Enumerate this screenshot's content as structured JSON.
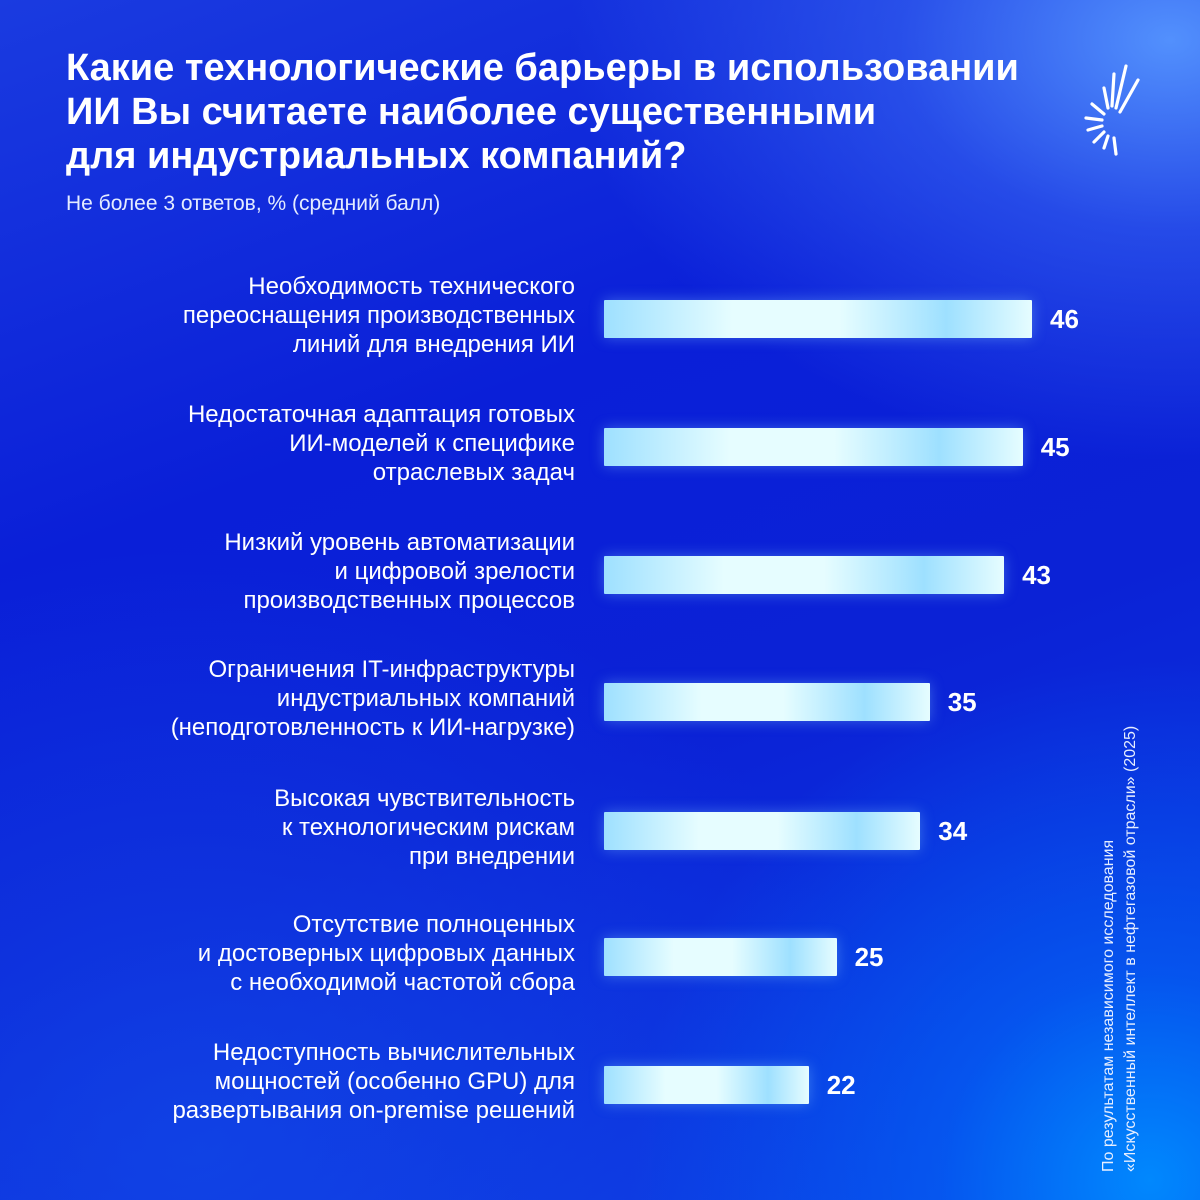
{
  "header": {
    "title_lines": [
      "Какие технологические барьеры в использовании",
      "ИИ Вы считаете наиболее существенными",
      "для индустриальных компаний?"
    ],
    "subtitle": "Не более 3 ответов, % (средний балл)"
  },
  "footnote": {
    "lines": [
      "По результатам независимого исследования",
      "«Искусственный интеллект в нефтегазовой отрасли» (2025)"
    ]
  },
  "colors": {
    "background_top": "#1a3be0",
    "background_bottom": "#0c3ee4",
    "bar_light": "#e6fdff",
    "bar_mid": "#9ee0ff",
    "text": "#ffffff"
  },
  "chart_data": {
    "type": "bar",
    "orientation": "horizontal",
    "title": "Какие технологические барьеры в использовании ИИ Вы считаете наиболее существенными для индустриальных компаний?",
    "subtitle": "Не более 3 ответов, % (средний балл)",
    "xlabel": "",
    "ylabel": "",
    "xlim": [
      0,
      50
    ],
    "grid": false,
    "legend": "none",
    "categories": [
      [
        "Необходимость технического",
        "переоснащения производственных",
        "линий для внедрения ИИ"
      ],
      [
        "Недостаточная адаптация готовых",
        "ИИ-моделей к специфике",
        "отраслевых задач"
      ],
      [
        "Низкий уровень автоматизации",
        "и цифровой зрелости",
        "производственных процессов"
      ],
      [
        "Ограничения IT-инфраструктуры",
        "индустриальных компаний",
        "(неподготовленность к ИИ-нагрузке)"
      ],
      [
        "Высокая чувствительность",
        "к технологическим рискам",
        "при внедрении"
      ],
      [
        "Отсутствие полноценных",
        "и достоверных цифровых данных",
        "с необходимой частотой сбора"
      ],
      [
        "Недоступность вычислительных",
        "мощностей (особенно GPU) для",
        "развертывания on-premise решений"
      ]
    ],
    "values": [
      46,
      45,
      43,
      35,
      34,
      25,
      22
    ]
  }
}
